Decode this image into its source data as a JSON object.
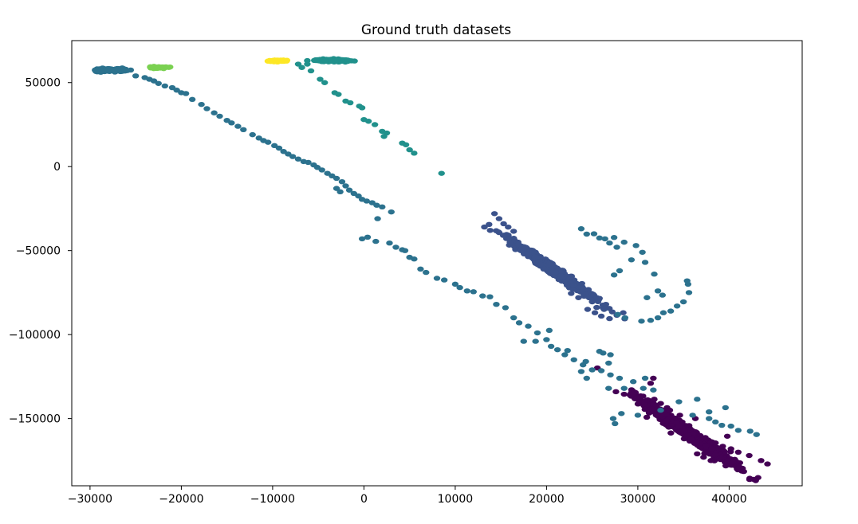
{
  "chart_data": {
    "type": "scatter",
    "title": "Ground truth datasets",
    "xlabel": "",
    "ylabel": "",
    "xlim": [
      -32000,
      48000
    ],
    "ylim": [
      -190000,
      75000
    ],
    "x_ticks": [
      {
        "value": -30000,
        "label": "−30000"
      },
      {
        "value": -20000,
        "label": "−20000"
      },
      {
        "value": -10000,
        "label": "−10000"
      },
      {
        "value": 0,
        "label": "0"
      },
      {
        "value": 10000,
        "label": "10000"
      },
      {
        "value": 20000,
        "label": "20000"
      },
      {
        "value": 30000,
        "label": "30000"
      },
      {
        "value": 40000,
        "label": "40000"
      }
    ],
    "y_ticks": [
      {
        "value": 50000,
        "label": "50000"
      },
      {
        "value": 0,
        "label": "0"
      },
      {
        "value": -50000,
        "label": "−50000"
      },
      {
        "value": -100000,
        "label": "−100000"
      },
      {
        "value": -150000,
        "label": "−150000"
      }
    ],
    "grid": false,
    "legend": "none",
    "series": [
      {
        "color": "#440154",
        "clusters": [
          {
            "center": [
              35500,
              -158500
            ],
            "spread_along": 5500,
            "spread_across": 2800,
            "angle_deg": -35,
            "count": 900
          }
        ],
        "points": [
          [
            29500,
            -135000
          ],
          [
            30200,
            -137000
          ],
          [
            31000,
            -139000
          ],
          [
            31800,
            -138500
          ],
          [
            32500,
            -141000
          ],
          [
            33200,
            -143500
          ],
          [
            31400,
            -129000
          ],
          [
            31700,
            -126000
          ],
          [
            38500,
            -164500
          ],
          [
            39300,
            -166500
          ],
          [
            40200,
            -168000
          ],
          [
            41000,
            -170000
          ],
          [
            42200,
            -172000
          ],
          [
            43500,
            -175000
          ],
          [
            44200,
            -177000
          ],
          [
            36500,
            -171000
          ],
          [
            37200,
            -173000
          ],
          [
            38000,
            -175000
          ],
          [
            27600,
            -134000
          ],
          [
            28500,
            -135500
          ],
          [
            33500,
            -145000
          ],
          [
            34600,
            -148000
          ],
          [
            37500,
            -166000
          ],
          [
            39800,
            -160500
          ],
          [
            36300,
            -150000
          ]
        ]
      },
      {
        "color": "#3b528b",
        "clusters": [
          {
            "center": [
              21000,
              -62500
            ],
            "spread_along": 5200,
            "spread_across": 2200,
            "angle_deg": -35,
            "count": 650
          }
        ],
        "points": [
          [
            14300,
            -28000
          ],
          [
            14800,
            -31000
          ],
          [
            15300,
            -34000
          ],
          [
            15800,
            -36000
          ],
          [
            16400,
            -38500
          ],
          [
            24500,
            -85000
          ],
          [
            25300,
            -87000
          ],
          [
            26000,
            -89000
          ],
          [
            26900,
            -90500
          ],
          [
            27700,
            -88500
          ],
          [
            28400,
            -87000
          ],
          [
            25500,
            -78000
          ],
          [
            26500,
            -82000
          ],
          [
            23500,
            -78000
          ],
          [
            22700,
            -75500
          ],
          [
            16000,
            -45000
          ],
          [
            17200,
            -50000
          ],
          [
            26300,
            -85000
          ],
          [
            27200,
            -86500
          ],
          [
            25000,
            -80500
          ]
        ]
      },
      {
        "color": "#2c728e",
        "clusters": [
          {
            "center": [
              -27800,
              57500
            ],
            "spread_along": 1600,
            "spread_across": 900,
            "angle_deg": 0,
            "count": 140
          }
        ],
        "points": [
          [
            -25000,
            54000
          ],
          [
            -24000,
            53000
          ],
          [
            -23500,
            52000
          ],
          [
            -23000,
            51000
          ],
          [
            -22500,
            49500
          ],
          [
            -21800,
            48000
          ],
          [
            -21000,
            47000
          ],
          [
            -20500,
            45500
          ],
          [
            -20000,
            44000
          ],
          [
            -19500,
            43500
          ],
          [
            -18800,
            40000
          ],
          [
            -17800,
            37000
          ],
          [
            -17200,
            34500
          ],
          [
            -16400,
            32000
          ],
          [
            -15800,
            30000
          ],
          [
            -15000,
            27500
          ],
          [
            -14500,
            26000
          ],
          [
            -13800,
            24000
          ],
          [
            -13200,
            22000
          ],
          [
            -12200,
            19000
          ],
          [
            -11500,
            17000
          ],
          [
            -11000,
            15500
          ],
          [
            -10500,
            14500
          ],
          [
            -9800,
            12500
          ],
          [
            -9300,
            11000
          ],
          [
            -8800,
            9000
          ],
          [
            -8300,
            7500
          ],
          [
            -7800,
            6000
          ],
          [
            -7200,
            4500
          ],
          [
            -6600,
            3000
          ],
          [
            -6100,
            2500
          ],
          [
            -5500,
            1000
          ],
          [
            -5100,
            -500
          ],
          [
            -4600,
            -2000
          ],
          [
            -4000,
            -4000
          ],
          [
            -3500,
            -5500
          ],
          [
            -3000,
            -7000
          ],
          [
            -2400,
            -9000
          ],
          [
            -2000,
            -11500
          ],
          [
            -1600,
            -14000
          ],
          [
            -1100,
            -16000
          ],
          [
            -600,
            -17500
          ],
          [
            -200,
            -19500
          ],
          [
            300,
            -20500
          ],
          [
            900,
            -21500
          ],
          [
            1400,
            -23000
          ],
          [
            2000,
            -24000
          ],
          [
            -3000,
            -13000
          ],
          [
            -2600,
            -15000
          ],
          [
            3000,
            -27000
          ],
          [
            1500,
            -31000
          ],
          [
            -200,
            -43000
          ],
          [
            400,
            -42000
          ],
          [
            1300,
            -44500
          ],
          [
            2800,
            -45500
          ],
          [
            3500,
            -48000
          ],
          [
            4200,
            -49500
          ],
          [
            4500,
            -50000
          ],
          [
            5000,
            -54000
          ],
          [
            5500,
            -55000
          ],
          [
            6200,
            -61000
          ],
          [
            6800,
            -63000
          ],
          [
            8000,
            -66500
          ],
          [
            8800,
            -67500
          ],
          [
            10000,
            -70000
          ],
          [
            10500,
            -72000
          ],
          [
            11300,
            -74000
          ],
          [
            12000,
            -74500
          ],
          [
            13000,
            -77000
          ],
          [
            13800,
            -77500
          ],
          [
            14500,
            -82000
          ],
          [
            15500,
            -84000
          ],
          [
            16400,
            -90000
          ],
          [
            17000,
            -93000
          ],
          [
            18000,
            -95000
          ],
          [
            19000,
            -99000
          ],
          [
            20000,
            -103000
          ],
          [
            20500,
            -107000
          ],
          [
            21200,
            -109000
          ],
          [
            22000,
            -112000
          ],
          [
            23000,
            -115000
          ],
          [
            24000,
            -118000
          ],
          [
            25000,
            -121000
          ],
          [
            26000,
            -121500
          ],
          [
            27000,
            -124000
          ],
          [
            28000,
            -126000
          ],
          [
            29500,
            -128000
          ],
          [
            30800,
            -126000
          ],
          [
            28500,
            -132000
          ],
          [
            26800,
            -132000
          ],
          [
            23800,
            -122000
          ],
          [
            24400,
            -126000
          ],
          [
            27300,
            -150000
          ],
          [
            27500,
            -153000
          ],
          [
            28200,
            -147000
          ],
          [
            30000,
            -148000
          ],
          [
            32500,
            -145000
          ],
          [
            36000,
            -148000
          ],
          [
            37800,
            -150000
          ],
          [
            38500,
            -152000
          ],
          [
            39200,
            -154000
          ],
          [
            40200,
            -154500
          ],
          [
            41000,
            -157000
          ],
          [
            42300,
            -157500
          ],
          [
            43000,
            -159500
          ],
          [
            34500,
            -140000
          ],
          [
            36500,
            -138500
          ],
          [
            37800,
            -146000
          ],
          [
            39600,
            -143500
          ],
          [
            30600,
            -132000
          ],
          [
            31700,
            -133000
          ],
          [
            27000,
            -112000
          ],
          [
            26200,
            -111000
          ],
          [
            25800,
            -110000
          ],
          [
            24300,
            -116000
          ],
          [
            20300,
            -97500
          ],
          [
            26800,
            -117000
          ],
          [
            17500,
            -104000
          ],
          [
            18800,
            -104000
          ],
          [
            22300,
            -109500
          ],
          [
            27800,
            -88000
          ],
          [
            28600,
            -90000
          ],
          [
            30400,
            -92000
          ],
          [
            31400,
            -91500
          ],
          [
            32200,
            -90000
          ],
          [
            32800,
            -87000
          ],
          [
            33600,
            -86000
          ],
          [
            34300,
            -83000
          ],
          [
            35000,
            -80500
          ],
          [
            35600,
            -75000
          ],
          [
            35500,
            -70000
          ],
          [
            35400,
            -68000
          ],
          [
            32200,
            -74000
          ],
          [
            32700,
            -76500
          ],
          [
            31000,
            -78000
          ],
          [
            29800,
            -47000
          ],
          [
            30500,
            -51000
          ],
          [
            29300,
            -55500
          ],
          [
            28000,
            -62000
          ],
          [
            27400,
            -64500
          ],
          [
            27700,
            -48000
          ],
          [
            26900,
            -45500
          ],
          [
            26400,
            -43000
          ],
          [
            25800,
            -42500
          ],
          [
            23800,
            -37000
          ],
          [
            25200,
            -40000
          ],
          [
            24400,
            -40200
          ],
          [
            27400,
            -42200
          ],
          [
            28500,
            -45000
          ],
          [
            30800,
            -57000
          ],
          [
            31800,
            -64000
          ]
        ]
      },
      {
        "color": "#21918c",
        "clusters": [
          {
            "center": [
              -3400,
              63200
            ],
            "spread_along": 1700,
            "spread_across": 700,
            "angle_deg": 0,
            "count": 160
          }
        ],
        "points": [
          [
            -6200,
            61000
          ],
          [
            -6800,
            59000
          ],
          [
            -7200,
            61000
          ],
          [
            -5800,
            57000
          ],
          [
            -4800,
            52000
          ],
          [
            -4300,
            50000
          ],
          [
            -3200,
            44000
          ],
          [
            -2800,
            43000
          ],
          [
            -2000,
            39000
          ],
          [
            -1500,
            38000
          ],
          [
            -500,
            36000
          ],
          [
            -200,
            35000
          ],
          [
            0,
            28000
          ],
          [
            500,
            27000
          ],
          [
            1200,
            25000
          ],
          [
            2000,
            21000
          ],
          [
            2500,
            20000
          ],
          [
            2200,
            18000
          ],
          [
            4200,
            14000
          ],
          [
            4600,
            13000
          ],
          [
            5000,
            10000
          ],
          [
            5500,
            8000
          ],
          [
            8500,
            -4000
          ]
        ]
      },
      {
        "color": "#7ad151",
        "clusters": [
          {
            "center": [
              -22500,
              59000
            ],
            "spread_along": 800,
            "spread_across": 450,
            "angle_deg": 0,
            "count": 90
          }
        ],
        "points": []
      },
      {
        "color": "#fde725",
        "clusters": [
          {
            "center": [
              -9500,
              63000
            ],
            "spread_along": 800,
            "spread_across": 450,
            "angle_deg": 0,
            "count": 90
          }
        ],
        "points": []
      }
    ]
  }
}
